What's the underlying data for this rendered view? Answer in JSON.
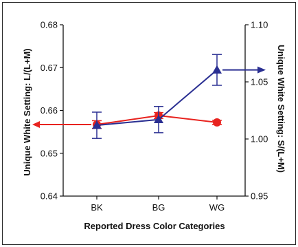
{
  "chart_data": {
    "type": "line",
    "categories": [
      "BK",
      "BG",
      "WG"
    ],
    "xlabel": "Reported Dress Color Categories",
    "left_axis": {
      "label": "Unique White Setting: L/(L+M)",
      "range": [
        0.64,
        0.68
      ],
      "ticks": [
        "0.64",
        "0.65",
        "0.66",
        "0.67",
        "0.68"
      ]
    },
    "right_axis": {
      "label": "Unique White Setting: S/(L+M)",
      "range": [
        0.95,
        1.1
      ],
      "ticks": [
        "0.95",
        "1.00",
        "1.05",
        "1.10"
      ]
    },
    "series": [
      {
        "axis": "left",
        "marker": "circle",
        "color": "#e8231f",
        "values": [
          0.6567,
          0.6588,
          0.6572
        ],
        "error": [
          0.0009,
          0.0007,
          0.0005
        ]
      },
      {
        "axis": "right",
        "marker": "triangle",
        "color": "#2a2f92",
        "values": [
          1.012,
          1.017,
          1.0605
        ],
        "error": [
          0.0115,
          0.0115,
          0.0135
        ]
      }
    ],
    "arrows": [
      {
        "series": 0,
        "direction": "left"
      },
      {
        "series": 1,
        "direction": "right"
      }
    ],
    "grid": false,
    "legend": "none"
  }
}
